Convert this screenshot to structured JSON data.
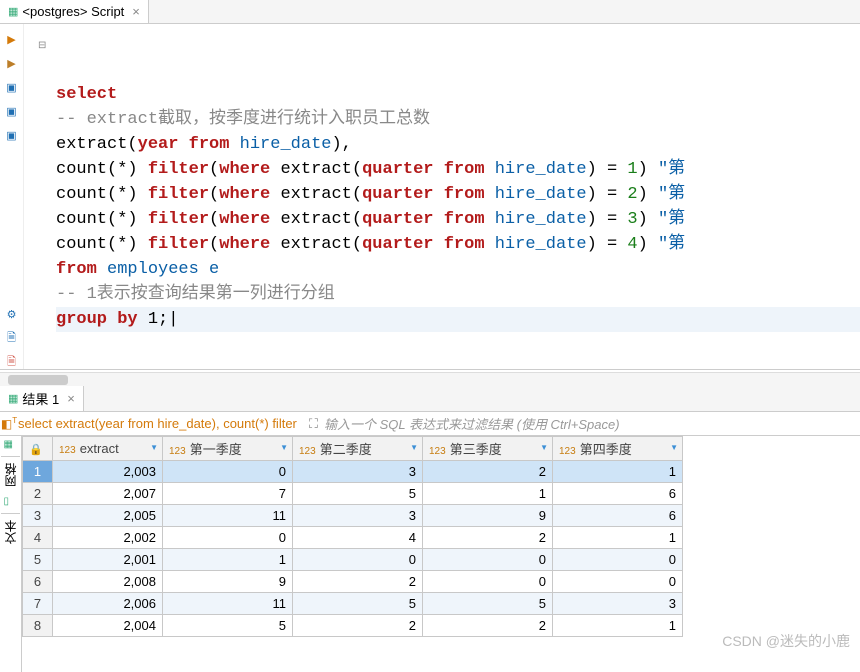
{
  "editor_tab": {
    "title": "<postgres> Script",
    "icon": "sql-script-icon"
  },
  "code": {
    "l1": "select",
    "l2a": "-- extract",
    "l2b": "截取，按季度进行统计入职员工总数",
    "l3_fn": "extract",
    "l3_arg1": "year",
    "l3_kw": "from",
    "l3_arg2": "hire_date",
    "l4_fn": "count",
    "l4_star": "*",
    "l4_filter": "filter",
    "l4_where": "where",
    "l4_ext": "extract",
    "l4_q": "quarter",
    "l4_from": "from",
    "l4_col": "hire_date",
    "l4_num": "1",
    "l4_alias": "\"第",
    "l5_num": "2",
    "l5_alias": "\"第",
    "l6_num": "3",
    "l6_alias": "\"第",
    "l7_num": "4",
    "l7_alias": "\"第",
    "l8_from": "from",
    "l8_tbl": "employees e",
    "l9": "-- 1表示按查询结果第一列进行分组",
    "l10_gb": "group by",
    "l10_v": " 1;"
  },
  "results_tab": "结果 1",
  "filter_sql": "select extract(year from hire_date), count(*) filter",
  "filter_hint": "输入一个 SQL 表达式来过滤结果 (使用 Ctrl+Space)",
  "columns": {
    "c0": "extract",
    "c1": "第一季度",
    "c2": "第二季度",
    "c3": "第三季度",
    "c4": "第四季度",
    "type_prefix": "123"
  },
  "rows": [
    {
      "n": "1",
      "v": [
        "2,003",
        "0",
        "3",
        "2",
        "1"
      ]
    },
    {
      "n": "2",
      "v": [
        "2,007",
        "7",
        "5",
        "1",
        "6"
      ]
    },
    {
      "n": "3",
      "v": [
        "2,005",
        "11",
        "3",
        "9",
        "6"
      ]
    },
    {
      "n": "4",
      "v": [
        "2,002",
        "0",
        "4",
        "2",
        "1"
      ]
    },
    {
      "n": "5",
      "v": [
        "2,001",
        "1",
        "0",
        "0",
        "0"
      ]
    },
    {
      "n": "6",
      "v": [
        "2,008",
        "9",
        "2",
        "0",
        "0"
      ]
    },
    {
      "n": "7",
      "v": [
        "2,006",
        "11",
        "5",
        "5",
        "3"
      ]
    },
    {
      "n": "8",
      "v": [
        "2,004",
        "5",
        "2",
        "2",
        "1"
      ]
    }
  ],
  "side_tabs": {
    "grid": "网格",
    "text": "文本"
  },
  "gutter_icons": [
    "▶",
    "▶",
    "▣",
    "▣",
    "▣",
    "—",
    "⚙",
    "🗎",
    "🗎"
  ],
  "gutter_colors": [
    "#d47a0a",
    "#bc7e29",
    "#1f6fb3",
    "#1f6fb3",
    "#1f6fb3",
    "#ccc",
    "#1f6fb3",
    "#1f6fb3",
    "#d1564a"
  ],
  "watermark": "CSDN @迷失的小鹿",
  "colors": {
    "kw": "#b31b1b",
    "comment": "#888888",
    "source": "#0a5fa6",
    "accent": "#d47a0a",
    "sel_row": "#cfe4f7",
    "alt_row": "#eff5fb"
  }
}
